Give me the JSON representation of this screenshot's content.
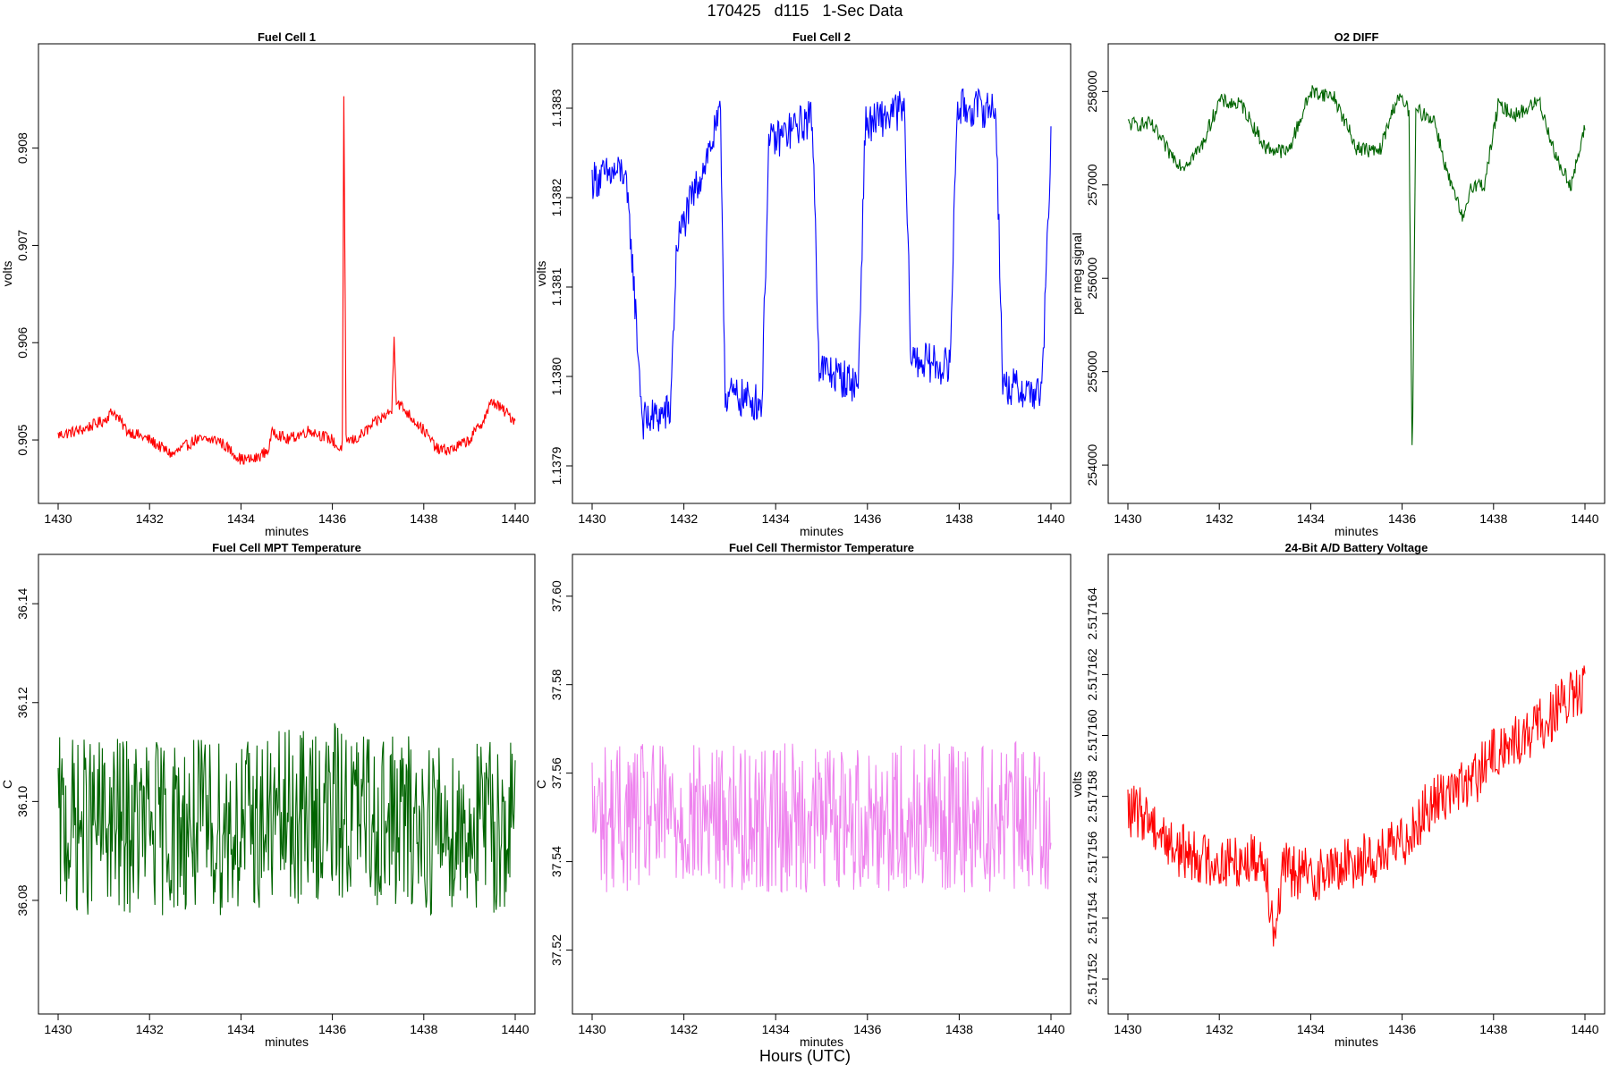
{
  "figure": {
    "title": "170425   d115   1-Sec Data",
    "xlabel": "Hours (UTC)"
  },
  "chart_data": [
    {
      "type": "line",
      "title": "Fuel Cell 1",
      "xlabel": "minutes",
      "ylabel": "volts",
      "color": "#ff0000",
      "xlim": [
        1430,
        1440
      ],
      "ylim": [
        0.90455,
        0.90887
      ],
      "xticks": [
        1430,
        1432,
        1434,
        1436,
        1438,
        1440
      ],
      "yticks": [
        0.905,
        0.906,
        0.907,
        0.908
      ],
      "ytick_labels": [
        "0.905",
        "0.906",
        "0.907",
        "0.908"
      ],
      "series": [
        {
          "x": [
            1430.0,
            1430.5,
            1431.0,
            1431.2,
            1431.5,
            1432.0,
            1432.5,
            1433.0,
            1433.5,
            1434.0,
            1434.3,
            1434.6,
            1434.7,
            1435.0,
            1435.5,
            1436.0,
            1436.15,
            1436.22,
            1436.25,
            1436.3,
            1436.5,
            1437.0,
            1437.3,
            1437.35,
            1437.4,
            1437.6,
            1438.0,
            1438.3,
            1438.6,
            1439.0,
            1439.3,
            1439.5,
            1440.0
          ],
          "y": [
            0.90505,
            0.9051,
            0.9052,
            0.9053,
            0.9051,
            0.905,
            0.90485,
            0.905,
            0.905,
            0.9048,
            0.9048,
            0.9049,
            0.9051,
            0.905,
            0.9051,
            0.905,
            0.9049,
            0.90495,
            0.9085,
            0.905,
            0.905,
            0.9052,
            0.9053,
            0.9061,
            0.9054,
            0.9053,
            0.9051,
            0.9049,
            0.9049,
            0.905,
            0.9052,
            0.9054,
            0.9052
          ]
        }
      ],
      "noise": 6e-05
    },
    {
      "type": "line",
      "title": "Fuel Cell 2",
      "xlabel": "minutes",
      "ylabel": "volts",
      "color": "#0000ff",
      "xlim": [
        1430,
        1440
      ],
      "ylim": [
        1.13788,
        1.13835
      ],
      "xticks": [
        1430,
        1432,
        1434,
        1436,
        1438,
        1440
      ],
      "yticks": [
        1.1379,
        1.138,
        1.1381,
        1.1382,
        1.1383
      ],
      "ytick_labels": [
        "1.1379",
        "1.1380",
        "1.1381",
        "1.1382",
        "1.1383"
      ],
      "series": [
        {
          "x": [
            1430.0,
            1430.7,
            1430.85,
            1431.1,
            1431.7,
            1431.85,
            1432.8,
            1432.9,
            1433.7,
            1433.85,
            1434.8,
            1434.95,
            1435.8,
            1435.95,
            1436.8,
            1436.95,
            1437.8,
            1437.95,
            1438.8,
            1438.95,
            1439.8,
            1440.0
          ],
          "y": [
            1.13822,
            1.13823,
            1.13815,
            1.13795,
            1.13796,
            1.13815,
            1.13829,
            1.13798,
            1.13797,
            1.13826,
            1.13829,
            1.13801,
            1.13799,
            1.13828,
            1.1383,
            1.13802,
            1.13801,
            1.1383,
            1.1383,
            1.13799,
            1.13798,
            1.13826
          ]
        }
      ],
      "noise": 2.2e-05
    },
    {
      "type": "line",
      "title": "O2 DIFF",
      "xlabel": "minutes",
      "ylabel": "per meg signal",
      "color": "#006400",
      "xlim": [
        1430,
        1440
      ],
      "ylim": [
        253800,
        258300
      ],
      "xticks": [
        1430,
        1432,
        1434,
        1436,
        1438,
        1440
      ],
      "yticks": [
        254000,
        255000,
        256000,
        257000,
        258000
      ],
      "ytick_labels": [
        "254000",
        "255000",
        "256000",
        "257000",
        "258000"
      ],
      "series": [
        {
          "x": [
            1430.0,
            1430.5,
            1430.9,
            1431.2,
            1431.6,
            1432.0,
            1432.5,
            1433.0,
            1433.5,
            1434.0,
            1434.5,
            1435.0,
            1435.5,
            1435.9,
            1436.15,
            1436.22,
            1436.3,
            1436.7,
            1437.0,
            1437.35,
            1437.5,
            1437.8,
            1438.1,
            1438.5,
            1439.0,
            1439.4,
            1439.7,
            1440.0
          ],
          "y": [
            257650,
            257650,
            257350,
            257200,
            257400,
            257900,
            257850,
            257400,
            257350,
            258000,
            257950,
            257400,
            257350,
            257950,
            257800,
            253950,
            257800,
            257700,
            257100,
            256600,
            257000,
            257000,
            257850,
            257750,
            257900,
            257250,
            257000,
            257600
          ]
        }
      ],
      "noise": 80
    },
    {
      "type": "line",
      "title": "Fuel Cell MPT Temperature",
      "xlabel": "minutes",
      "ylabel": "C",
      "color": "#006400",
      "xlim": [
        1430,
        1440
      ],
      "ylim": [
        36.061,
        36.146
      ],
      "xticks": [
        1430,
        1432,
        1434,
        1436,
        1438,
        1440
      ],
      "yticks": [
        36.08,
        36.1,
        36.12,
        36.14
      ],
      "ytick_labels": [
        "36.08",
        "36.10",
        "36.12",
        "36.14"
      ],
      "series": [
        {
          "x": [
            1430.0,
            1432.0,
            1434.0,
            1436.0,
            1438.0,
            1440.0
          ],
          "y": [
            36.095,
            36.095,
            36.095,
            36.098,
            36.095,
            36.095
          ]
        }
      ],
      "noise": 0.018
    },
    {
      "type": "line",
      "title": "Fuel Cell Thermistor Temperature",
      "xlabel": "minutes",
      "ylabel": "C",
      "color": "#ee82ee",
      "xlim": [
        1430,
        1440
      ],
      "ylim": [
        37.51,
        37.605
      ],
      "xticks": [
        1430,
        1432,
        1434,
        1436,
        1438,
        1440
      ],
      "yticks": [
        37.52,
        37.54,
        37.56,
        37.58,
        37.6
      ],
      "ytick_labels": [
        "37.52",
        "37.54",
        "37.56",
        "37.58",
        "37.60"
      ],
      "series": [
        {
          "x": [
            1430.0,
            1432.0,
            1434.0,
            1436.0,
            1438.0,
            1440.0
          ],
          "y": [
            37.55,
            37.55,
            37.55,
            37.55,
            37.55,
            37.55
          ]
        }
      ],
      "noise": 0.017
    },
    {
      "type": "line",
      "title": "24-Bit A/D Battery Voltage",
      "xlabel": "minutes",
      "ylabel": "volts",
      "color": "#ff0000",
      "xlim": [
        1430,
        1440
      ],
      "ylim": [
        2.5171515,
        2.5171653
      ],
      "xticks": [
        1430,
        1432,
        1434,
        1436,
        1438,
        1440
      ],
      "yticks": [
        2.517152,
        2.517154,
        2.517156,
        2.517158,
        2.51716,
        2.517162,
        2.517164
      ],
      "ytick_labels": [
        "2.517152",
        "2.517154",
        "2.517156",
        "2.517158",
        "2.517160",
        "2.517162",
        "2.517164"
      ],
      "series": [
        {
          "x": [
            1430.0,
            1430.4,
            1431.0,
            1432.0,
            1433.0,
            1433.2,
            1433.4,
            1434.0,
            1434.5,
            1435.0,
            1435.5,
            1436.0,
            1436.5,
            1437.0,
            1437.5,
            1438.0,
            1438.5,
            1439.0,
            1439.5,
            1440.0
          ],
          "y": [
            2.5171575,
            2.5171574,
            2.5171563,
            2.5171558,
            2.517156,
            2.5171535,
            2.5171556,
            2.5171554,
            2.5171556,
            2.5171559,
            2.517156,
            2.5171565,
            2.5171575,
            2.5171582,
            2.5171584,
            2.5171594,
            2.5171598,
            2.5171603,
            2.517161,
            2.5171615
          ]
        }
      ],
      "noise": 9e-07
    }
  ]
}
